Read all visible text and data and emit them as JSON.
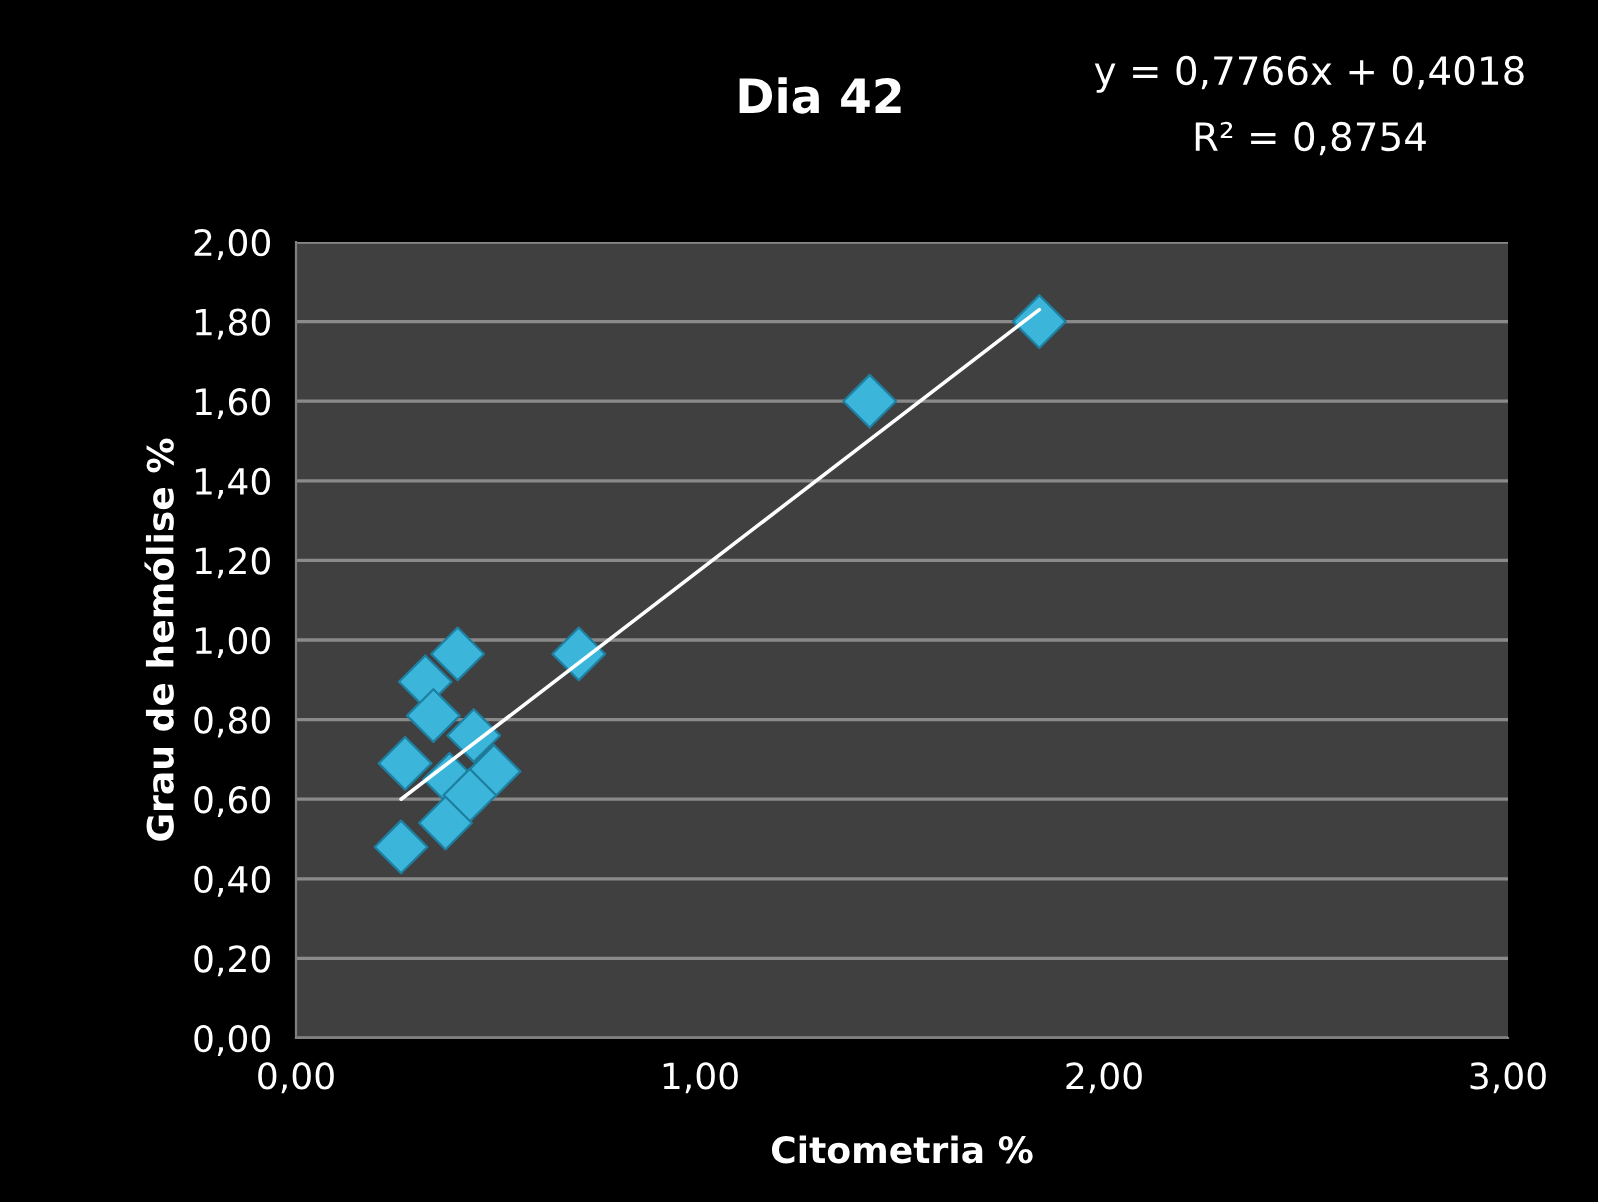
{
  "chart_data": {
    "type": "scatter",
    "title": "Dia 42",
    "xlabel": "Citometria %",
    "ylabel": "Grau de hemólise %",
    "annotations": [
      "y = 0,7766x + 0,4018",
      "R² = 0,8754"
    ],
    "series": [
      {
        "color": "#3bb6da",
        "marker": "diamond",
        "x": [
          0.4,
          0.32,
          0.34,
          0.44,
          0.27,
          0.49,
          0.38,
          0.43,
          0.37,
          0.26,
          0.7,
          1.42,
          1.84
        ],
        "values": [
          0.965,
          0.895,
          0.81,
          0.76,
          0.69,
          0.67,
          0.65,
          0.61,
          0.54,
          0.48,
          0.965,
          1.6,
          1.8
        ]
      },
      {
        "type": "line",
        "color": "#ffffff",
        "line_style": "solid",
        "marker": "none",
        "x": [
          0.26,
          1.84
        ],
        "values": [
          0.6,
          1.83
        ]
      }
    ],
    "xlim": [
      0,
      3
    ],
    "ylim": [
      0,
      2
    ],
    "xticks": [
      {
        "value": 0,
        "label": "0,00"
      },
      {
        "value": 1,
        "label": "1,00"
      },
      {
        "value": 2,
        "label": "2,00"
      },
      {
        "value": 3,
        "label": "3,00"
      }
    ],
    "yticks": [
      {
        "value": 0,
        "label": "0,00"
      },
      {
        "value": 0.2,
        "label": "0,20"
      },
      {
        "value": 0.4,
        "label": "0,40"
      },
      {
        "value": 0.6,
        "label": "0,60"
      },
      {
        "value": 0.8,
        "label": "0,80"
      },
      {
        "value": 1.0,
        "label": "1,00"
      },
      {
        "value": 1.2,
        "label": "1,20"
      },
      {
        "value": 1.4,
        "label": "1,40"
      },
      {
        "value": 1.6,
        "label": "1,60"
      },
      {
        "value": 1.8,
        "label": "1,80"
      },
      {
        "value": 2.0,
        "label": "2,00"
      }
    ],
    "grid": "y",
    "legend": false
  }
}
